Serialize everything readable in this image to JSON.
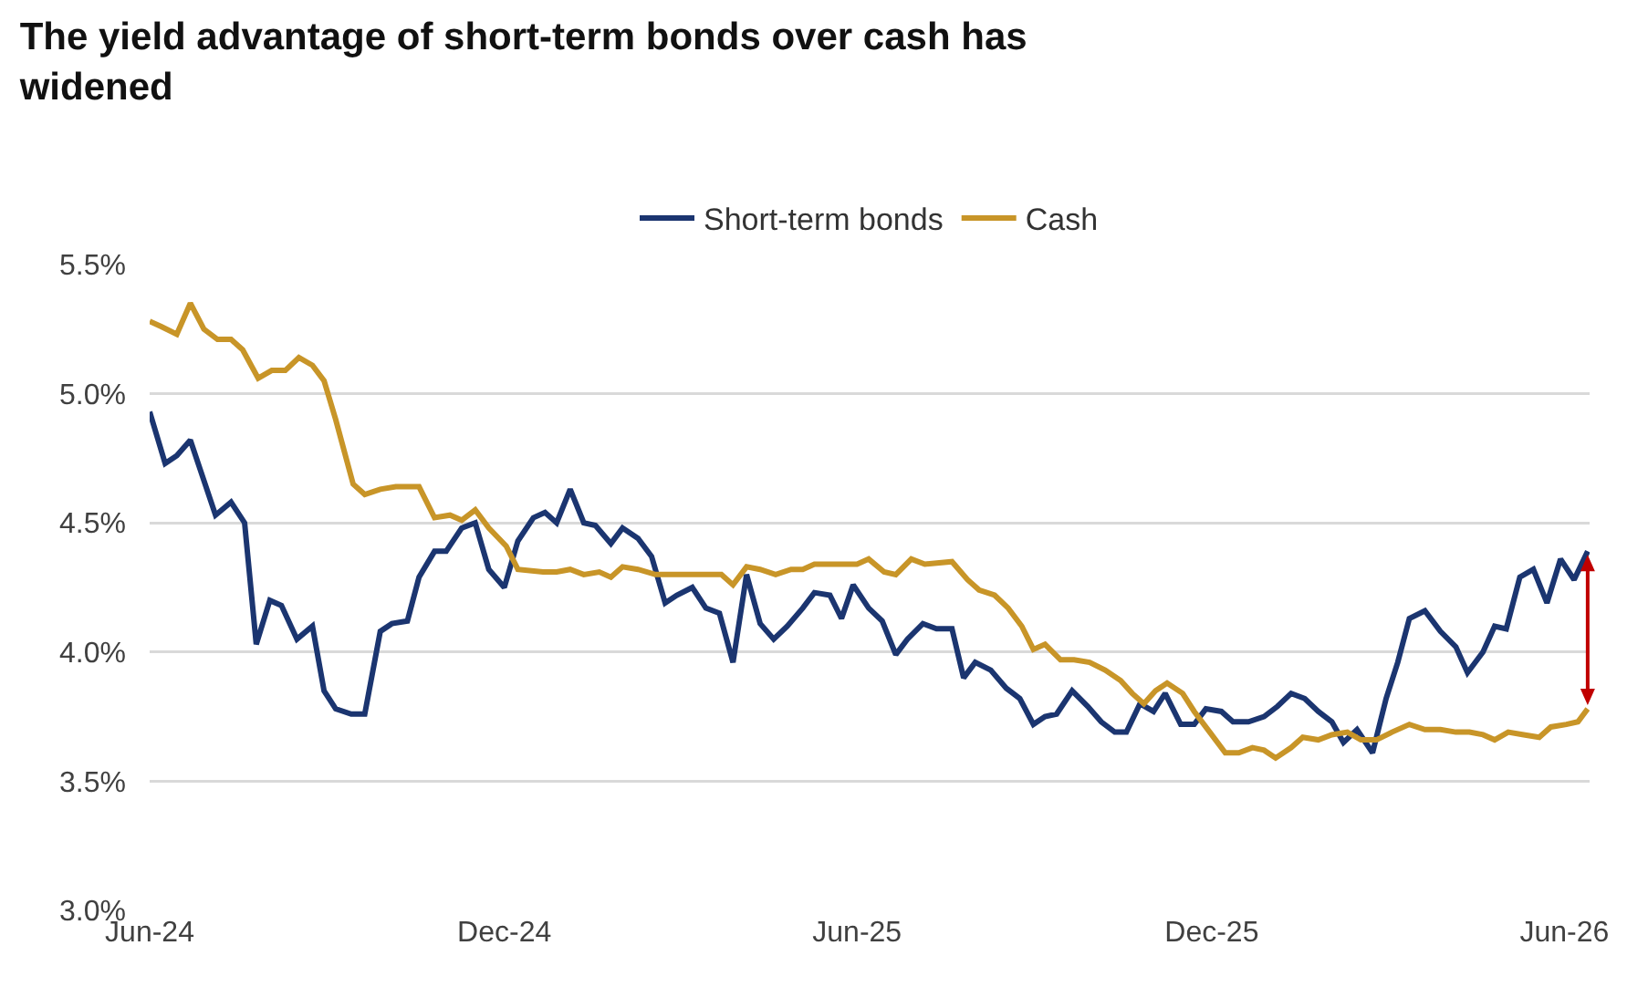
{
  "chart_data": {
    "type": "line",
    "title": "The yield advantage of short-term bonds over cash has widened",
    "xlim": [
      "2024-06-01",
      "2026-06-14"
    ],
    "xticks": [
      {
        "value": "2024-06-01",
        "label": "Jun-24"
      },
      {
        "value": "2024-12-01",
        "label": "Dec-24"
      },
      {
        "value": "2025-06-01",
        "label": "Jun-25"
      },
      {
        "value": "2025-12-01",
        "label": "Dec-25"
      },
      {
        "value": "2026-06-01",
        "label": "Jun-26"
      }
    ],
    "ylim": [
      3.0,
      5.5
    ],
    "yticks": [
      {
        "value": 3.0,
        "label": "3.0%"
      },
      {
        "value": 3.5,
        "label": "3.5%"
      },
      {
        "value": 4.0,
        "label": "4.0%"
      },
      {
        "value": 4.5,
        "label": "4.5%"
      },
      {
        "value": 5.0,
        "label": "5.0%"
      },
      {
        "value": 5.5,
        "label": "5.5%"
      }
    ],
    "grid": "y",
    "legend": "top",
    "marker": "none",
    "line_style": "solid",
    "series": [
      {
        "name": "Short-term bonds",
        "color": "#1b3570",
        "x": [
          "2024-06-01",
          "2024-06-09",
          "2024-06-15",
          "2024-06-22",
          "2024-07-05",
          "2024-07-13",
          "2024-07-20",
          "2024-07-26",
          "2024-08-02",
          "2024-08-08",
          "2024-08-16",
          "2024-08-24",
          "2024-08-30",
          "2024-09-05",
          "2024-09-13",
          "2024-09-20",
          "2024-09-28",
          "2024-10-04",
          "2024-10-12",
          "2024-10-18",
          "2024-10-26",
          "2024-11-01",
          "2024-11-09",
          "2024-11-16",
          "2024-11-23",
          "2024-12-01",
          "2024-12-08",
          "2024-12-16",
          "2024-12-22",
          "2024-12-28",
          "2025-01-04",
          "2025-01-11",
          "2025-01-17",
          "2025-01-25",
          "2025-01-31",
          "2025-02-08",
          "2025-02-15",
          "2025-02-22",
          "2025-02-28",
          "2025-03-08",
          "2025-03-15",
          "2025-03-22",
          "2025-03-29",
          "2025-04-05",
          "2025-04-12",
          "2025-04-19",
          "2025-04-26",
          "2025-05-04",
          "2025-05-10",
          "2025-05-18",
          "2025-05-24",
          "2025-05-30",
          "2025-06-07",
          "2025-06-14",
          "2025-06-21",
          "2025-06-27",
          "2025-07-05",
          "2025-07-12",
          "2025-07-20",
          "2025-07-26",
          "2025-08-01",
          "2025-08-09",
          "2025-08-17",
          "2025-08-24",
          "2025-08-31",
          "2025-09-06",
          "2025-09-12",
          "2025-09-20",
          "2025-09-28",
          "2025-10-05",
          "2025-10-12",
          "2025-10-18",
          "2025-10-25",
          "2025-11-01",
          "2025-11-07",
          "2025-11-15",
          "2025-11-22",
          "2025-11-28",
          "2025-12-06",
          "2025-12-12",
          "2025-12-20",
          "2025-12-28",
          "2026-01-04",
          "2026-01-11",
          "2026-01-18",
          "2026-01-25",
          "2026-02-01",
          "2026-02-07",
          "2026-02-14",
          "2026-02-22",
          "2026-03-01",
          "2026-03-07",
          "2026-03-13",
          "2026-03-21",
          "2026-03-29",
          "2026-04-06",
          "2026-04-12",
          "2026-04-20",
          "2026-04-26",
          "2026-05-02",
          "2026-05-09",
          "2026-05-16",
          "2026-05-23",
          "2026-05-30",
          "2026-06-06",
          "2026-06-13"
        ],
        "values": [
          4.93,
          4.73,
          4.76,
          4.82,
          4.53,
          4.58,
          4.5,
          4.03,
          4.2,
          4.18,
          4.05,
          4.1,
          3.85,
          3.78,
          3.76,
          3.76,
          4.08,
          4.11,
          4.12,
          4.29,
          4.39,
          4.39,
          4.48,
          4.5,
          4.32,
          4.25,
          4.43,
          4.52,
          4.54,
          4.5,
          4.63,
          4.5,
          4.49,
          4.42,
          4.48,
          4.44,
          4.37,
          4.19,
          4.22,
          4.25,
          4.17,
          4.15,
          3.96,
          4.3,
          4.11,
          4.05,
          4.1,
          4.17,
          4.23,
          4.22,
          4.13,
          4.26,
          4.17,
          4.12,
          3.99,
          4.05,
          4.11,
          4.09,
          4.09,
          3.9,
          3.96,
          3.93,
          3.86,
          3.82,
          3.72,
          3.75,
          3.76,
          3.85,
          3.79,
          3.73,
          3.69,
          3.69,
          3.8,
          3.77,
          3.84,
          3.72,
          3.72,
          3.78,
          3.77,
          3.73,
          3.73,
          3.75,
          3.79,
          3.84,
          3.82,
          3.77,
          3.73,
          3.65,
          3.7,
          3.61,
          3.82,
          3.96,
          4.13,
          4.16,
          4.08,
          4.02,
          3.92,
          4.0,
          4.1,
          4.09,
          4.29,
          4.32,
          4.19,
          4.36,
          4.28,
          4.39
        ]
      },
      {
        "name": "Cash",
        "color": "#c89528",
        "x": [
          "2024-06-01",
          "2024-06-07",
          "2024-06-15",
          "2024-06-22",
          "2024-06-29",
          "2024-07-06",
          "2024-07-13",
          "2024-07-19",
          "2024-07-27",
          "2024-08-03",
          "2024-08-10",
          "2024-08-17",
          "2024-08-24",
          "2024-08-30",
          "2024-09-05",
          "2024-09-14",
          "2024-09-20",
          "2024-09-28",
          "2024-10-06",
          "2024-10-18",
          "2024-10-26",
          "2024-11-03",
          "2024-11-09",
          "2024-11-16",
          "2024-11-23",
          "2024-12-02",
          "2024-12-08",
          "2024-12-21",
          "2024-12-28",
          "2025-01-04",
          "2025-01-11",
          "2025-01-19",
          "2025-01-25",
          "2025-01-31",
          "2025-02-08",
          "2025-02-17",
          "2025-02-26",
          "2025-03-08",
          "2025-03-23",
          "2025-03-29",
          "2025-04-05",
          "2025-04-12",
          "2025-04-20",
          "2025-04-28",
          "2025-05-04",
          "2025-05-10",
          "2025-05-24",
          "2025-06-01",
          "2025-06-07",
          "2025-06-15",
          "2025-06-21",
          "2025-06-29",
          "2025-07-06",
          "2025-07-20",
          "2025-07-28",
          "2025-08-03",
          "2025-08-11",
          "2025-08-18",
          "2025-08-25",
          "2025-08-31",
          "2025-09-06",
          "2025-09-14",
          "2025-09-21",
          "2025-09-29",
          "2025-10-07",
          "2025-10-15",
          "2025-10-21",
          "2025-10-27",
          "2025-11-02",
          "2025-11-08",
          "2025-11-16",
          "2025-11-22",
          "2025-11-30",
          "2025-12-08",
          "2025-12-15",
          "2025-12-22",
          "2025-12-28",
          "2026-01-03",
          "2026-01-11",
          "2026-01-17",
          "2026-01-25",
          "2026-02-01",
          "2026-02-09",
          "2026-02-16",
          "2026-02-24",
          "2026-03-04",
          "2026-03-13",
          "2026-03-21",
          "2026-03-29",
          "2026-04-06",
          "2026-04-13",
          "2026-04-20",
          "2026-04-26",
          "2026-05-03",
          "2026-05-11",
          "2026-05-19",
          "2026-05-25",
          "2026-06-02",
          "2026-06-08",
          "2026-06-13"
        ],
        "values": [
          5.28,
          5.26,
          5.23,
          5.35,
          5.25,
          5.21,
          5.21,
          5.17,
          5.06,
          5.09,
          5.09,
          5.14,
          5.11,
          5.05,
          4.9,
          4.65,
          4.61,
          4.63,
          4.64,
          4.64,
          4.52,
          4.53,
          4.51,
          4.55,
          4.48,
          4.41,
          4.32,
          4.31,
          4.31,
          4.32,
          4.3,
          4.31,
          4.29,
          4.33,
          4.32,
          4.3,
          4.3,
          4.3,
          4.3,
          4.26,
          4.33,
          4.32,
          4.3,
          4.32,
          4.32,
          4.34,
          4.34,
          4.34,
          4.36,
          4.31,
          4.3,
          4.36,
          4.34,
          4.35,
          4.28,
          4.24,
          4.22,
          4.17,
          4.1,
          4.01,
          4.03,
          3.97,
          3.97,
          3.96,
          3.93,
          3.89,
          3.84,
          3.8,
          3.85,
          3.88,
          3.84,
          3.77,
          3.69,
          3.61,
          3.61,
          3.63,
          3.62,
          3.59,
          3.63,
          3.67,
          3.66,
          3.68,
          3.69,
          3.66,
          3.66,
          3.69,
          3.72,
          3.7,
          3.7,
          3.69,
          3.69,
          3.68,
          3.66,
          3.69,
          3.68,
          3.67,
          3.71,
          3.72,
          3.73,
          3.78
        ]
      }
    ]
  }
}
